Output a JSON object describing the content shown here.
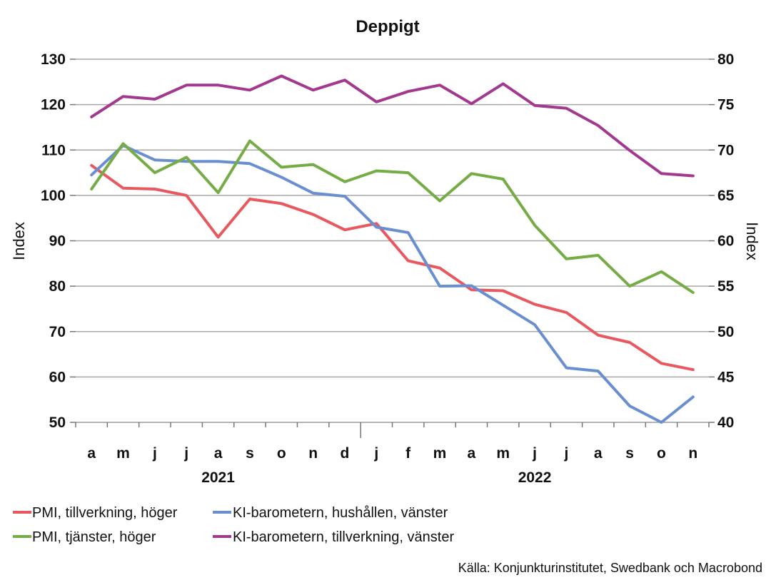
{
  "chart_data": {
    "type": "line",
    "title": "Deppigt",
    "ylabel_left": "Index",
    "ylabel_right": "Index",
    "ylim_left": [
      50,
      130
    ],
    "yticks_left": [
      50,
      60,
      70,
      80,
      90,
      100,
      110,
      120,
      130
    ],
    "ylim_right": [
      40,
      80
    ],
    "yticks_right": [
      40,
      45,
      50,
      55,
      60,
      65,
      70,
      75,
      80
    ],
    "grid": true,
    "categories": [
      "a",
      "m",
      "j",
      "j",
      "a",
      "s",
      "o",
      "n",
      "d",
      "j",
      "f",
      "m",
      "a",
      "m",
      "j",
      "j",
      "a",
      "s",
      "o",
      "n"
    ],
    "year_labels": [
      {
        "label": "2021",
        "at_category_index": 4
      },
      {
        "label": "2022",
        "at_category_index": 14
      }
    ],
    "series": [
      {
        "name": "PMI, tillverkning, höger",
        "axis": "right",
        "color": "#e8585f",
        "values": [
          68.3,
          65.8,
          65.7,
          65.0,
          60.4,
          64.6,
          64.1,
          62.9,
          61.2,
          61.9,
          57.8,
          57.0,
          54.6,
          54.5,
          53.0,
          52.1,
          49.6,
          48.8,
          46.5,
          45.8
        ]
      },
      {
        "name": "KI-barometern, hushållen, vänster",
        "axis": "left",
        "color": "#6a8fd0",
        "values": [
          104.5,
          111.0,
          107.8,
          107.5,
          107.5,
          107.0,
          104.0,
          100.5,
          99.8,
          93.0,
          91.8,
          80.0,
          80.1,
          75.8,
          71.5,
          62.0,
          61.3,
          53.6,
          50.0,
          55.6
        ]
      },
      {
        "name": "PMI, tjänster, höger",
        "axis": "right",
        "color": "#76ac45",
        "values": [
          65.7,
          70.7,
          67.5,
          69.2,
          65.3,
          71.0,
          68.1,
          68.4,
          66.5,
          67.7,
          67.5,
          64.4,
          67.4,
          66.8,
          61.7,
          58.0,
          58.4,
          55.0,
          56.6,
          54.3
        ]
      },
      {
        "name": "KI-barometern, tillverkning, vänster",
        "axis": "left",
        "color": "#a3398e",
        "values": [
          117.3,
          121.8,
          121.2,
          124.3,
          124.3,
          123.2,
          126.3,
          123.2,
          125.4,
          120.6,
          122.9,
          124.3,
          120.2,
          124.6,
          119.8,
          119.2,
          115.4,
          109.9,
          104.8,
          104.3
        ]
      }
    ],
    "legend_position": "bottom",
    "source": "Källa: Konjunkturinstitutet, Swedbank och Macrobond"
  }
}
